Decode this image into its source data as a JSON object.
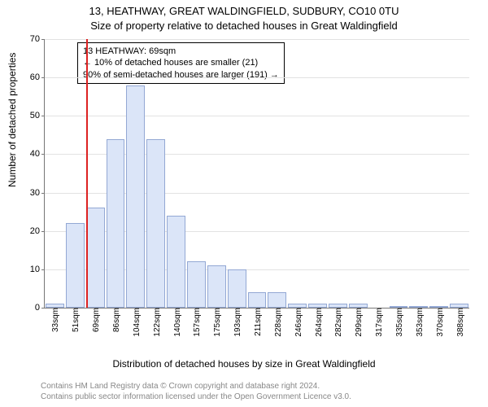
{
  "chart": {
    "type": "histogram",
    "title_main": "13, HEATHWAY, GREAT WALDINGFIELD, SUDBURY, CO10 0TU",
    "title_sub": "Size of property relative to detached houses in Great Waldingfield",
    "y_label": "Number of detached properties",
    "x_label": "Distribution of detached houses by size in Great Waldingfield",
    "ylim": [
      0,
      70
    ],
    "ytick_step": 10,
    "background_color": "#ffffff",
    "grid_color": "#e2e2e2",
    "axis_color": "#777777",
    "bar_fill": "#dbe5f8",
    "bar_border": "#93a8d4",
    "marker_color": "#d22",
    "marker_x_value": 69,
    "x_ticks": [
      "33sqm",
      "51sqm",
      "69sqm",
      "86sqm",
      "104sqm",
      "122sqm",
      "140sqm",
      "157sqm",
      "175sqm",
      "193sqm",
      "211sqm",
      "228sqm",
      "246sqm",
      "264sqm",
      "282sqm",
      "299sqm",
      "317sqm",
      "335sqm",
      "353sqm",
      "370sqm",
      "388sqm"
    ],
    "bars": [
      {
        "v": 1
      },
      {
        "v": 22
      },
      {
        "v": 26
      },
      {
        "v": 44
      },
      {
        "v": 58
      },
      {
        "v": 44
      },
      {
        "v": 24
      },
      {
        "v": 12
      },
      {
        "v": 11
      },
      {
        "v": 10
      },
      {
        "v": 4
      },
      {
        "v": 4
      },
      {
        "v": 1
      },
      {
        "v": 1
      },
      {
        "v": 1
      },
      {
        "v": 1
      },
      {
        "v": 0
      },
      {
        "v": 0.5
      },
      {
        "v": 0.5
      },
      {
        "v": 0.5
      },
      {
        "v": 1
      }
    ],
    "callout": {
      "line1": "13 HEATHWAY: 69sqm",
      "line2": "← 10% of detached houses are smaller (21)",
      "line3": "90% of semi-detached houses are larger (191) →"
    },
    "footnote_line1": "Contains HM Land Registry data © Crown copyright and database right 2024.",
    "footnote_line2": "Contains public sector information licensed under the Open Government Licence v3.0."
  }
}
